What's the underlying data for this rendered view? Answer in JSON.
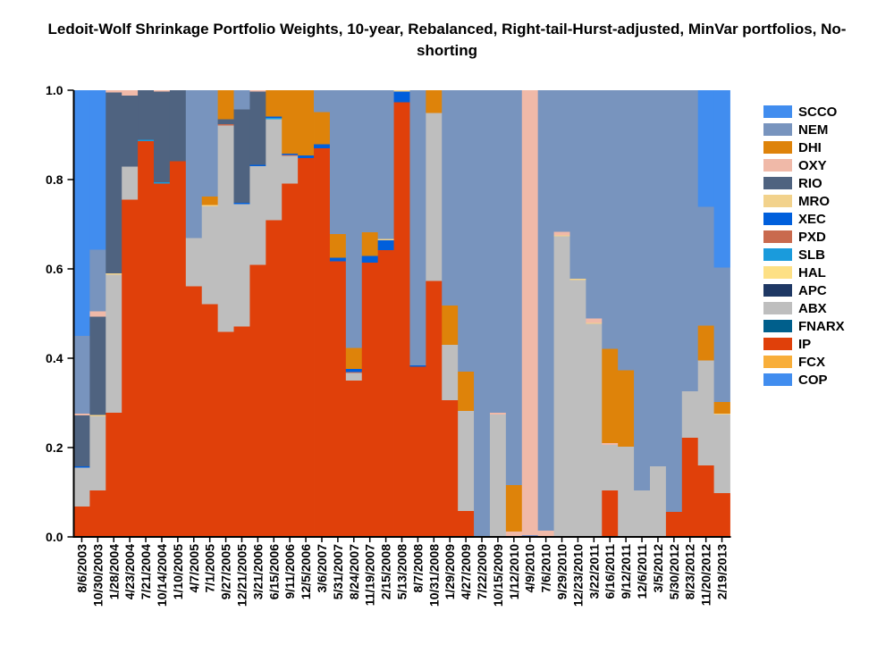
{
  "chart_data": {
    "type": "bar",
    "stacked": true,
    "title": "Ledoit-Wolf Shrinkage Portfolio Weights, 10-year, Rebalanced, Right-tail-Hurst-adjusted, MinVar portfolios, No-shorting",
    "xlabel": "",
    "ylabel": "",
    "ylim": [
      0,
      1
    ],
    "yticks": [
      "0.0",
      "0.2",
      "0.4",
      "0.6",
      "0.8",
      "1.0"
    ],
    "legend_position": "right",
    "legend": [
      {
        "name": "SCCO",
        "color": "#418DEF"
      },
      {
        "name": "NEM",
        "color": "#7894BE"
      },
      {
        "name": "DHI",
        "color": "#DE830A"
      },
      {
        "name": "OXY",
        "color": "#F0B9A8"
      },
      {
        "name": "RIO",
        "color": "#4F6380"
      },
      {
        "name": "MRO",
        "color": "#F2D28C"
      },
      {
        "name": "XEC",
        "color": "#005FDC"
      },
      {
        "name": "PXD",
        "color": "#C96A4E"
      },
      {
        "name": "SLB",
        "color": "#1A9BDC"
      },
      {
        "name": "HAL",
        "color": "#FDE085"
      },
      {
        "name": "APC",
        "color": "#1F3864"
      },
      {
        "name": "ABX",
        "color": "#BEBEBE"
      },
      {
        "name": "FNARX",
        "color": "#005F8C"
      },
      {
        "name": "IP",
        "color": "#E0400A"
      },
      {
        "name": "FCX",
        "color": "#F8AE3A"
      },
      {
        "name": "COP",
        "color": "#418DEF"
      }
    ],
    "stack_order_bottom_up": [
      "COP",
      "FCX",
      "IP",
      "FNARX",
      "ABX",
      "APC",
      "HAL",
      "SLB",
      "PXD",
      "XEC",
      "MRO",
      "RIO",
      "OXY",
      "DHI",
      "NEM",
      "SCCO"
    ],
    "columns": [
      {
        "date": "8/6/2003",
        "w": {
          "IP": 0.068,
          "ABX": 0.087,
          "XEC": 0.003,
          "RIO": 0.114,
          "OXY": 0.004,
          "NEM": 0.174,
          "SCCO": 0.55
        }
      },
      {
        "date": "10/30/2003",
        "w": {
          "IP": 0.104,
          "ABX": 0.166,
          "MRO": 0.003,
          "RIO": 0.22,
          "OXY": 0.012,
          "NEM": 0.138,
          "SCCO": 0.357
        }
      },
      {
        "date": "1/28/2004",
        "w": {
          "IP": 0.278,
          "ABX": 0.309,
          "MRO": 0.003,
          "RIO": 0.405,
          "OXY": 0.005
        }
      },
      {
        "date": "4/23/2004",
        "w": {
          "IP": 0.755,
          "ABX": 0.074,
          "RIO": 0.159,
          "OXY": 0.012
        }
      },
      {
        "date": "7/21/2004",
        "w": {
          "IP": 0.886,
          "SLB": 0.003,
          "RIO": 0.111
        }
      },
      {
        "date": "10/14/2004",
        "w": {
          "IP": 0.791,
          "SLB": 0.003,
          "RIO": 0.203,
          "OXY": 0.003
        }
      },
      {
        "date": "1/10/2005",
        "w": {
          "IP": 0.841,
          "RIO": 0.159
        }
      },
      {
        "date": "4/7/2005",
        "w": {
          "IP": 0.561,
          "ABX": 0.108,
          "NEM": 0.331
        }
      },
      {
        "date": "7/1/2005",
        "w": {
          "IP": 0.521,
          "ABX": 0.219,
          "MRO": 0.003,
          "DHI": 0.019,
          "NEM": 0.238
        }
      },
      {
        "date": "9/27/2005",
        "w": {
          "IP": 0.459,
          "ABX": 0.462,
          "PXD": 0.003,
          "RIO": 0.011,
          "DHI": 0.065
        }
      },
      {
        "date": "12/21/2005",
        "w": {
          "IP": 0.471,
          "ABX": 0.274,
          "XEC": 0.003,
          "RIO": 0.209,
          "NEM": 0.043
        }
      },
      {
        "date": "3/21/2006",
        "w": {
          "IP": 0.609,
          "ABX": 0.221,
          "XEC": 0.003,
          "RIO": 0.164,
          "OXY": 0.003
        }
      },
      {
        "date": "6/15/2006",
        "w": {
          "IP": 0.709,
          "ABX": 0.226,
          "SLB": 0.003,
          "XEC": 0.003,
          "DHI": 0.059
        }
      },
      {
        "date": "9/11/2006",
        "w": {
          "IP": 0.791,
          "ABX": 0.062,
          "PXD": 0.002,
          "XEC": 0.003,
          "DHI": 0.142
        }
      },
      {
        "date": "12/5/2006",
        "w": {
          "IP": 0.848,
          "XEC": 0.006,
          "DHI": 0.146
        }
      },
      {
        "date": "3/6/2007",
        "w": {
          "IP": 0.87,
          "XEC": 0.009,
          "DHI": 0.072,
          "NEM": 0.049
        }
      },
      {
        "date": "5/31/2007",
        "w": {
          "IP": 0.617,
          "XEC": 0.008,
          "DHI": 0.053,
          "NEM": 0.322
        }
      },
      {
        "date": "8/24/2007",
        "w": {
          "IP": 0.35,
          "ABX": 0.017,
          "PXD": 0.002,
          "XEC": 0.007,
          "DHI": 0.047,
          "NEM": 0.577
        }
      },
      {
        "date": "11/19/2007",
        "w": {
          "IP": 0.614,
          "XEC": 0.015,
          "DHI": 0.053,
          "NEM": 0.318
        }
      },
      {
        "date": "2/15/2008",
        "w": {
          "IP": 0.642,
          "MRO": 0.003,
          "XEC": 0.022,
          "NEM": 0.333
        }
      },
      {
        "date": "5/13/2008",
        "w": {
          "IP": 0.973,
          "MRO": 0.003,
          "XEC": 0.024
        }
      },
      {
        "date": "8/7/2008",
        "w": {
          "IP": 0.381,
          "XEC": 0.003,
          "NEM": 0.616
        }
      },
      {
        "date": "10/31/2008",
        "w": {
          "IP": 0.573,
          "ABX": 0.376,
          "DHI": 0.051
        }
      },
      {
        "date": "1/29/2009",
        "w": {
          "IP": 0.306,
          "ABX": 0.124,
          "DHI": 0.088,
          "NEM": 0.482
        }
      },
      {
        "date": "4/27/2009",
        "w": {
          "IP": 0.058,
          "ABX": 0.224,
          "DHI": 0.088,
          "NEM": 0.63
        }
      },
      {
        "date": "7/22/2009",
        "w": {
          "NEM": 1.0
        }
      },
      {
        "date": "10/15/2009",
        "w": {
          "ABX": 0.274,
          "OXY": 0.004,
          "NEM": 0.722
        }
      },
      {
        "date": "1/12/2010",
        "w": {
          "OXY": 0.012,
          "DHI": 0.104,
          "NEM": 0.884
        }
      },
      {
        "date": "4/9/2010",
        "w": {
          "XEC": 0.003,
          "OXY": 0.997
        }
      },
      {
        "date": "7/6/2010",
        "w": {
          "OXY": 0.014,
          "NEM": 0.986
        }
      },
      {
        "date": "9/29/2010",
        "w": {
          "ABX": 0.673,
          "MRO": 0.002,
          "OXY": 0.008,
          "NEM": 0.317
        }
      },
      {
        "date": "12/23/2010",
        "w": {
          "ABX": 0.575,
          "MRO": 0.003,
          "NEM": 0.422
        }
      },
      {
        "date": "3/22/2011",
        "w": {
          "ABX": 0.477,
          "MRO": 0.002,
          "OXY": 0.01,
          "NEM": 0.511
        }
      },
      {
        "date": "6/16/2011",
        "w": {
          "IP": 0.104,
          "ABX": 0.102,
          "OXY": 0.004,
          "DHI": 0.211,
          "NEM": 0.579
        }
      },
      {
        "date": "9/12/2011",
        "w": {
          "ABX": 0.202,
          "DHI": 0.171,
          "NEM": 0.627
        }
      },
      {
        "date": "12/6/2011",
        "w": {
          "ABX": 0.104,
          "NEM": 0.896
        }
      },
      {
        "date": "3/5/2012",
        "w": {
          "ABX": 0.158,
          "NEM": 0.842
        }
      },
      {
        "date": "5/30/2012",
        "w": {
          "IP": 0.056,
          "NEM": 0.944
        }
      },
      {
        "date": "8/23/2012",
        "w": {
          "IP": 0.222,
          "ABX": 0.104,
          "NEM": 0.674
        }
      },
      {
        "date": "11/20/2012",
        "w": {
          "IP": 0.16,
          "ABX": 0.235,
          "DHI": 0.078,
          "NEM": 0.266,
          "SCCO": 0.261
        }
      },
      {
        "date": "2/19/2013",
        "w": {
          "IP": 0.098,
          "ABX": 0.176,
          "MRO": 0.002,
          "DHI": 0.026,
          "NEM": 0.301,
          "SCCO": 0.397
        }
      }
    ]
  }
}
